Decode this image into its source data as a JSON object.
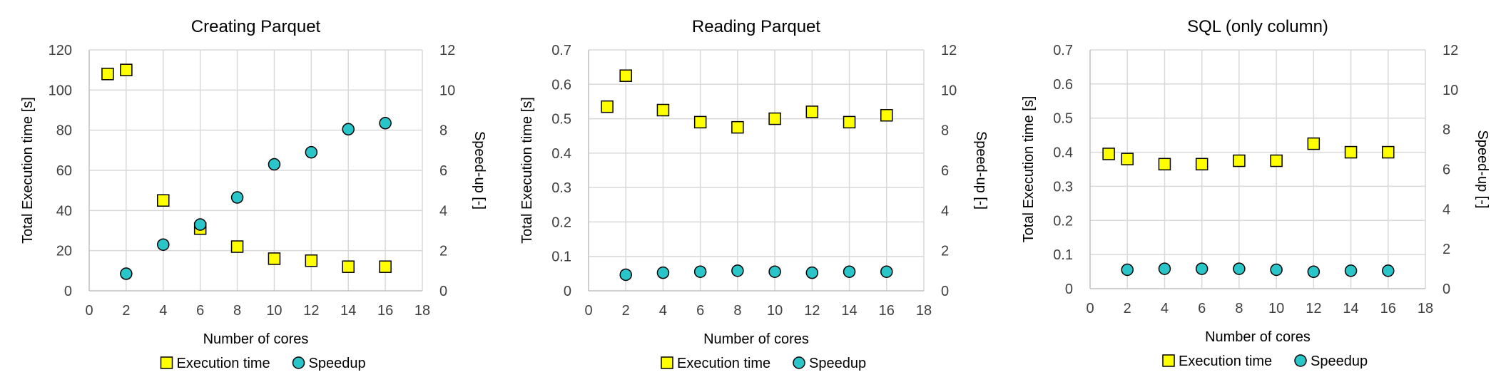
{
  "colors": {
    "execution_fill": "#FFFF00",
    "speedup_fill": "#29C5C8",
    "marker_stroke": "#000000",
    "grid": "#D9D9D9"
  },
  "chart_data": [
    {
      "type": "scatter",
      "title": "Creating Parquet",
      "xlabel": "Number of cores",
      "ylabel": "Total Execution time [s]",
      "y2label": "Speed-up [-]",
      "xlim": [
        0,
        18
      ],
      "xticks": [
        0,
        2,
        4,
        6,
        8,
        10,
        12,
        14,
        16,
        18
      ],
      "ylim": [
        0,
        120
      ],
      "yticks": [
        0,
        20,
        40,
        60,
        80,
        100,
        120
      ],
      "y2lim": [
        0,
        12
      ],
      "y2ticks": [
        0,
        2,
        4,
        6,
        8,
        10,
        12
      ],
      "grid": true,
      "legend_position": "bottom",
      "series": [
        {
          "name": "Execution time",
          "axis": "left",
          "marker": "square",
          "x": [
            1,
            2,
            4,
            6,
            8,
            10,
            12,
            14,
            16
          ],
          "y": [
            108,
            110,
            45,
            31,
            22,
            16,
            15,
            12,
            12
          ]
        },
        {
          "name": "Speedup",
          "axis": "right",
          "marker": "circle",
          "x": [
            2,
            4,
            6,
            8,
            10,
            12,
            14,
            16
          ],
          "y": [
            0.85,
            2.3,
            3.3,
            4.65,
            6.3,
            6.9,
            8.05,
            8.35
          ]
        }
      ]
    },
    {
      "type": "scatter",
      "title": "Reading Parquet",
      "xlabel": "Number of cores",
      "ylabel": "Total Execution time [s]",
      "y2label": "Speed-up [-]",
      "xlim": [
        0,
        18
      ],
      "xticks": [
        0,
        2,
        4,
        6,
        8,
        10,
        12,
        14,
        16,
        18
      ],
      "ylim": [
        0,
        0.7
      ],
      "yticks": [
        0,
        0.1,
        0.2,
        0.3,
        0.4,
        0.5,
        0.6,
        0.7
      ],
      "y2lim": [
        0,
        12
      ],
      "y2ticks": [
        0,
        2,
        4,
        6,
        8,
        10,
        12
      ],
      "grid": true,
      "legend_position": "bottom",
      "series": [
        {
          "name": "Execution time",
          "axis": "left",
          "marker": "square",
          "x": [
            1,
            2,
            4,
            6,
            8,
            10,
            12,
            14,
            16
          ],
          "y": [
            0.535,
            0.625,
            0.525,
            0.49,
            0.475,
            0.5,
            0.52,
            0.49,
            0.51
          ]
        },
        {
          "name": "Speedup",
          "axis": "right",
          "marker": "circle",
          "x": [
            2,
            4,
            6,
            8,
            10,
            12,
            14,
            16
          ],
          "y": [
            0.8,
            0.9,
            0.95,
            1.0,
            0.95,
            0.9,
            0.95,
            0.95
          ]
        }
      ]
    },
    {
      "type": "scatter",
      "title": "SQL (only column)",
      "xlabel": "Number of cores",
      "ylabel": "Total Execution time [s]",
      "y2label": "Speed-up [-]",
      "xlim": [
        0,
        18
      ],
      "xticks": [
        0,
        2,
        4,
        6,
        8,
        10,
        12,
        14,
        16,
        18
      ],
      "ylim": [
        0,
        0.7
      ],
      "yticks": [
        0,
        0.1,
        0.2,
        0.3,
        0.4,
        0.5,
        0.6,
        0.7
      ],
      "y2lim": [
        0,
        12
      ],
      "y2ticks": [
        0,
        2,
        4,
        6,
        8,
        10,
        12
      ],
      "grid": true,
      "legend_position": "bottom",
      "series": [
        {
          "name": "Execution time",
          "axis": "left",
          "marker": "square",
          "x": [
            1,
            2,
            4,
            6,
            8,
            10,
            12,
            14,
            16
          ],
          "y": [
            0.395,
            0.38,
            0.365,
            0.365,
            0.375,
            0.375,
            0.425,
            0.4,
            0.4
          ]
        },
        {
          "name": "Speedup",
          "axis": "right",
          "marker": "circle",
          "x": [
            2,
            4,
            6,
            8,
            10,
            12,
            14,
            16
          ],
          "y": [
            0.95,
            1.0,
            1.0,
            1.0,
            0.95,
            0.85,
            0.9,
            0.9
          ]
        }
      ]
    }
  ]
}
